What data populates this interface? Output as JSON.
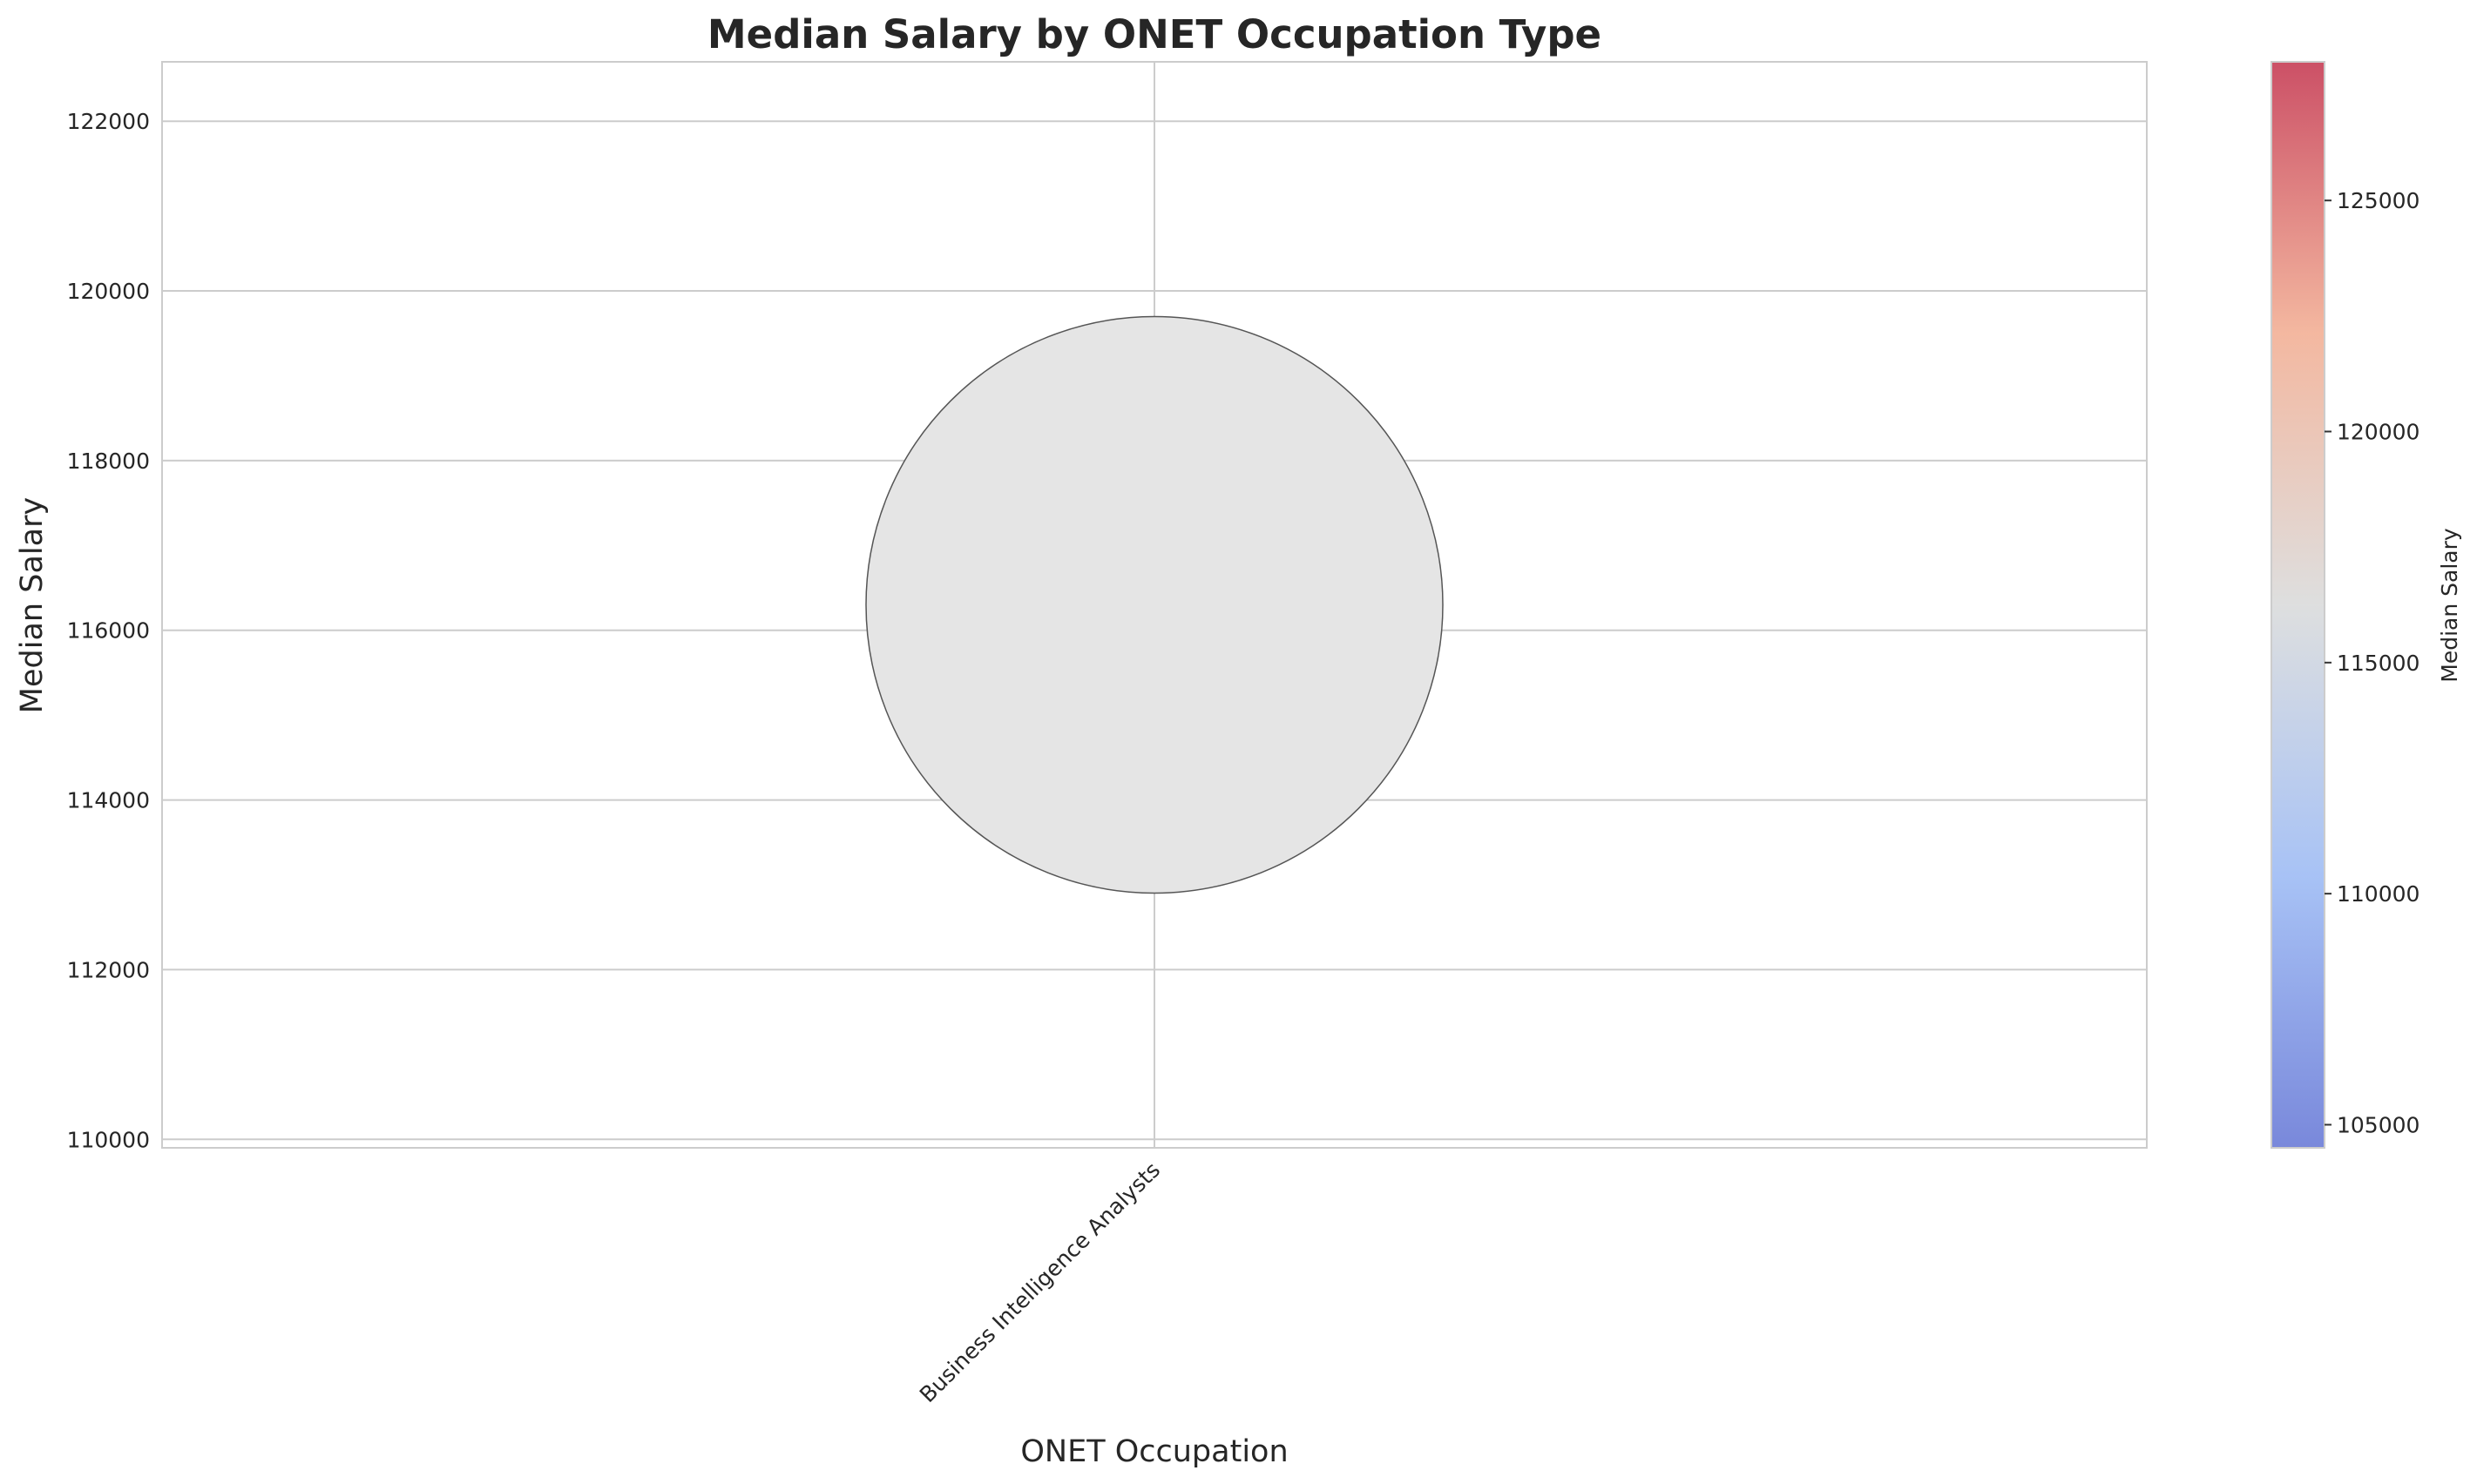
{
  "chart_data": {
    "type": "scatter",
    "title": "Median Salary by ONET Occupation Type",
    "xlabel": "ONET Occupation",
    "ylabel": "Median Salary",
    "categories": [
      "Business Intelligence Analysts"
    ],
    "series": [
      {
        "x": [
          "Business Intelligence Analysts"
        ],
        "values": [
          116300
        ]
      }
    ],
    "ylim": [
      109900,
      122700
    ],
    "yticks": [
      110000,
      112000,
      114000,
      116000,
      118000,
      120000,
      122000
    ],
    "grid": true,
    "colorbar": {
      "label": "Median Salary",
      "colormap": "coolwarm",
      "range": [
        104500,
        128000
      ],
      "ticks": [
        105000,
        110000,
        115000,
        120000,
        125000
      ]
    },
    "colors": {
      "point_fill": "#e5e5e5",
      "point_edge": "#555555",
      "cmap_low": "#7b8ad6",
      "cmap_mid": "#dcdddd",
      "cmap_high": "#c9566a"
    }
  }
}
